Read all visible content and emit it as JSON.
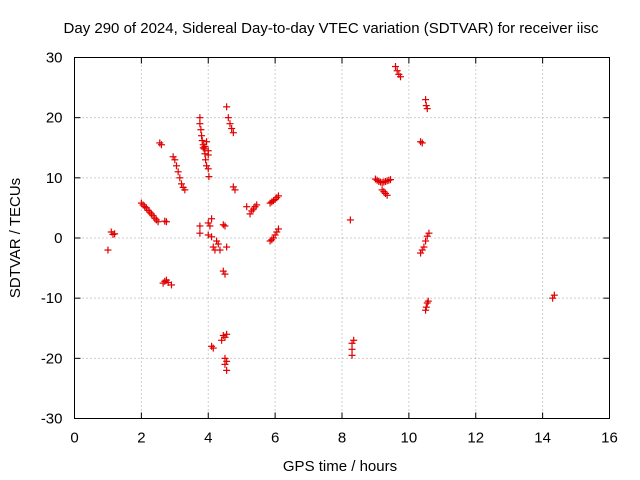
{
  "chart_data": {
    "type": "scatter",
    "title": "Day 290 of 2024, Sidereal Day-to-day VTEC variation (SDTVAR) for receiver iisc",
    "xlabel": "GPS time / hours",
    "ylabel": "SDTVAR / TECUs",
    "xlim": [
      0,
      16
    ],
    "ylim": [
      -30,
      30
    ],
    "xticks": [
      0,
      2,
      4,
      6,
      8,
      10,
      12,
      14,
      16
    ],
    "yticks": [
      -30,
      -20,
      -10,
      0,
      10,
      20,
      30
    ],
    "grid": true,
    "marker": "+",
    "color": "#e00000",
    "series": [
      {
        "name": "SDTVAR",
        "points": [
          [
            1.0,
            -2.0
          ],
          [
            1.1,
            1.0
          ],
          [
            1.15,
            0.6
          ],
          [
            1.2,
            0.7
          ],
          [
            2.0,
            5.8
          ],
          [
            2.05,
            5.5
          ],
          [
            2.1,
            5.2
          ],
          [
            2.15,
            5.0
          ],
          [
            2.2,
            4.6
          ],
          [
            2.25,
            4.3
          ],
          [
            2.3,
            4.0
          ],
          [
            2.35,
            3.7
          ],
          [
            2.4,
            3.3
          ],
          [
            2.45,
            3.0
          ],
          [
            2.5,
            2.7
          ],
          [
            2.55,
            15.8
          ],
          [
            2.6,
            15.5
          ],
          [
            2.7,
            2.8
          ],
          [
            2.75,
            2.7
          ],
          [
            2.65,
            -7.5
          ],
          [
            2.7,
            -7.2
          ],
          [
            2.75,
            -7.0
          ],
          [
            2.8,
            -7.4
          ],
          [
            2.9,
            -7.8
          ],
          [
            2.95,
            13.5
          ],
          [
            3.0,
            13.0
          ],
          [
            3.05,
            12.0
          ],
          [
            3.1,
            11.0
          ],
          [
            3.15,
            10.0
          ],
          [
            3.2,
            9.0
          ],
          [
            3.25,
            8.4
          ],
          [
            3.3,
            8.0
          ],
          [
            3.75,
            20.0
          ],
          [
            3.75,
            19.0
          ],
          [
            3.78,
            18.0
          ],
          [
            3.8,
            17.0
          ],
          [
            3.82,
            16.2
          ],
          [
            3.85,
            15.5
          ],
          [
            3.88,
            14.8
          ],
          [
            3.9,
            14.0
          ],
          [
            3.92,
            13.0
          ],
          [
            3.95,
            12.0
          ],
          [
            4.0,
            11.5
          ],
          [
            4.02,
            10.2
          ],
          [
            3.85,
            15.0
          ],
          [
            3.9,
            15.2
          ],
          [
            3.95,
            16.0
          ],
          [
            4.0,
            14.5
          ],
          [
            4.0,
            13.8
          ],
          [
            3.75,
            2.0
          ],
          [
            3.75,
            0.8
          ],
          [
            4.0,
            2.5
          ],
          [
            4.05,
            2.0
          ],
          [
            4.1,
            3.2
          ],
          [
            4.0,
            0.5
          ],
          [
            4.1,
            0.2
          ],
          [
            4.15,
            -1.5
          ],
          [
            4.2,
            -2.0
          ],
          [
            4.25,
            -0.5
          ],
          [
            4.3,
            -1.0
          ],
          [
            4.35,
            -2.0
          ],
          [
            4.45,
            2.2
          ],
          [
            4.5,
            2.0
          ],
          [
            4.45,
            -5.5
          ],
          [
            4.5,
            -6.0
          ],
          [
            4.45,
            -16.2
          ],
          [
            4.5,
            -16.5
          ],
          [
            4.55,
            -16.0
          ],
          [
            4.4,
            -17.0
          ],
          [
            4.1,
            -18.0
          ],
          [
            4.15,
            -18.3
          ],
          [
            4.5,
            -20.0
          ],
          [
            4.55,
            -20.5
          ],
          [
            4.5,
            -21.0
          ],
          [
            4.55,
            -22.0
          ],
          [
            4.55,
            21.8
          ],
          [
            4.6,
            20.0
          ],
          [
            4.65,
            19.0
          ],
          [
            4.7,
            18.2
          ],
          [
            4.75,
            17.5
          ],
          [
            4.55,
            -1.5
          ],
          [
            4.75,
            8.5
          ],
          [
            4.8,
            8.0
          ],
          [
            5.15,
            5.2
          ],
          [
            5.25,
            4.0
          ],
          [
            5.3,
            4.5
          ],
          [
            5.35,
            4.8
          ],
          [
            5.4,
            5.2
          ],
          [
            5.45,
            5.5
          ],
          [
            5.85,
            5.8
          ],
          [
            5.9,
            6.0
          ],
          [
            5.95,
            6.2
          ],
          [
            6.0,
            6.4
          ],
          [
            6.05,
            6.7
          ],
          [
            6.1,
            7.0
          ],
          [
            5.85,
            -0.5
          ],
          [
            5.9,
            -0.3
          ],
          [
            5.95,
            0.0
          ],
          [
            6.0,
            0.5
          ],
          [
            6.05,
            1.0
          ],
          [
            6.1,
            1.5
          ],
          [
            8.25,
            3.0
          ],
          [
            8.3,
            -17.5
          ],
          [
            8.3,
            -18.5
          ],
          [
            8.3,
            -19.5
          ],
          [
            8.35,
            -17.0
          ],
          [
            9.0,
            9.8
          ],
          [
            9.05,
            9.6
          ],
          [
            9.1,
            9.4
          ],
          [
            9.15,
            9.3
          ],
          [
            9.2,
            9.2
          ],
          [
            9.25,
            9.3
          ],
          [
            9.3,
            9.4
          ],
          [
            9.35,
            9.5
          ],
          [
            9.4,
            9.6
          ],
          [
            9.45,
            9.7
          ],
          [
            9.2,
            8.0
          ],
          [
            9.25,
            7.7
          ],
          [
            9.3,
            7.4
          ],
          [
            9.35,
            7.1
          ],
          [
            9.6,
            28.5
          ],
          [
            9.65,
            27.8
          ],
          [
            9.7,
            27.2
          ],
          [
            9.75,
            26.8
          ],
          [
            10.35,
            16.0
          ],
          [
            10.4,
            15.8
          ],
          [
            10.5,
            23.0
          ],
          [
            10.52,
            22.0
          ],
          [
            10.55,
            21.5
          ],
          [
            10.35,
            -2.5
          ],
          [
            10.4,
            -2.0
          ],
          [
            10.45,
            -1.5
          ],
          [
            10.5,
            -0.5
          ],
          [
            10.55,
            0.3
          ],
          [
            10.6,
            0.8
          ],
          [
            10.5,
            -12.0
          ],
          [
            10.52,
            -11.5
          ],
          [
            10.55,
            -10.8
          ],
          [
            10.58,
            -10.5
          ],
          [
            14.3,
            -10.0
          ],
          [
            14.35,
            -9.5
          ]
        ]
      }
    ]
  }
}
